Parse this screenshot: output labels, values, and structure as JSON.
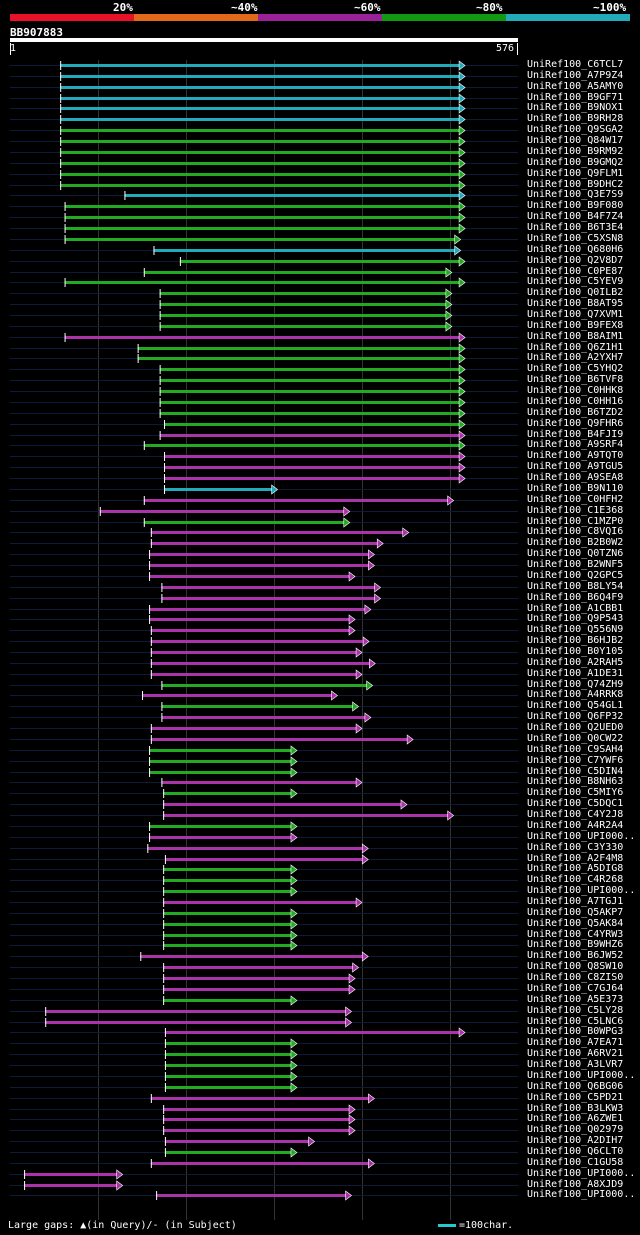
{
  "legend": {
    "labels": [
      "20%",
      "~40%",
      "~60%",
      "~80%",
      "~100%"
    ],
    "colors": [
      "#e8112a",
      "#e06a1a",
      "#992299",
      "#119911",
      "#22aabb"
    ]
  },
  "query": {
    "id": "BB907883",
    "start": "1",
    "end": "576",
    "length": 576
  },
  "colors": {
    "cyan": "#22aabb",
    "green": "#22aa22",
    "magenta": "#aa33aa"
  },
  "hits": [
    {
      "id": "UniRef100_C6TCL7",
      "c": "cyan",
      "s": 57,
      "e": 517
    },
    {
      "id": "UniRef100_A7P9Z4",
      "c": "cyan",
      "s": 57,
      "e": 517
    },
    {
      "id": "UniRef100_A5AMY0",
      "c": "cyan",
      "s": 57,
      "e": 517
    },
    {
      "id": "UniRef100_B9GF71",
      "c": "cyan",
      "s": 57,
      "e": 517
    },
    {
      "id": "UniRef100_B9NOX1",
      "c": "cyan",
      "s": 57,
      "e": 517
    },
    {
      "id": "UniRef100_B9RH28",
      "c": "cyan",
      "s": 57,
      "e": 517
    },
    {
      "id": "UniRef100_Q9SGA2",
      "c": "green",
      "s": 57,
      "e": 517
    },
    {
      "id": "UniRef100_Q84W17",
      "c": "green",
      "s": 57,
      "e": 517
    },
    {
      "id": "UniRef100_B9RM92",
      "c": "green",
      "s": 57,
      "e": 517
    },
    {
      "id": "UniRef100_B9GMQ2",
      "c": "green",
      "s": 57,
      "e": 517
    },
    {
      "id": "UniRef100_Q9FLM1",
      "c": "green",
      "s": 57,
      "e": 517
    },
    {
      "id": "UniRef100_B9DHC2",
      "c": "green",
      "s": 57,
      "e": 517
    },
    {
      "id": "UniRef100_Q3E7S9",
      "c": "cyan",
      "s": 130,
      "e": 517
    },
    {
      "id": "UniRef100_B9F080",
      "c": "green",
      "s": 62,
      "e": 517
    },
    {
      "id": "UniRef100_B4F7Z4",
      "c": "green",
      "s": 62,
      "e": 517
    },
    {
      "id": "UniRef100_B6T3E4",
      "c": "green",
      "s": 62,
      "e": 517
    },
    {
      "id": "UniRef100_C5XSN8",
      "c": "green",
      "s": 62,
      "e": 512
    },
    {
      "id": "UniRef100_Q680H6",
      "c": "cyan",
      "s": 163,
      "e": 512
    },
    {
      "id": "UniRef100_Q2V8D7",
      "c": "green",
      "s": 193,
      "e": 517
    },
    {
      "id": "UniRef100_C0PE87",
      "c": "green",
      "s": 152,
      "e": 502
    },
    {
      "id": "UniRef100_C5YEV9",
      "c": "green",
      "s": 62,
      "e": 517
    },
    {
      "id": "UniRef100_Q0ILB2",
      "c": "green",
      "s": 170,
      "e": 502
    },
    {
      "id": "UniRef100_B8AT95",
      "c": "green",
      "s": 170,
      "e": 502
    },
    {
      "id": "UniRef100_Q7XVM1",
      "c": "green",
      "s": 170,
      "e": 502
    },
    {
      "id": "UniRef100_B9FEX8",
      "c": "green",
      "s": 170,
      "e": 502
    },
    {
      "id": "UniRef100_B8AIM1",
      "c": "magenta",
      "s": 62,
      "e": 517
    },
    {
      "id": "UniRef100_Q6Z1H1",
      "c": "green",
      "s": 145,
      "e": 517
    },
    {
      "id": "UniRef100_A2YXH7",
      "c": "green",
      "s": 145,
      "e": 517
    },
    {
      "id": "UniRef100_C5YHQ2",
      "c": "green",
      "s": 170,
      "e": 517
    },
    {
      "id": "UniRef100_B6TVF8",
      "c": "green",
      "s": 170,
      "e": 517
    },
    {
      "id": "UniRef100_C0HHK8",
      "c": "green",
      "s": 170,
      "e": 517
    },
    {
      "id": "UniRef100_C0HH16",
      "c": "green",
      "s": 170,
      "e": 517
    },
    {
      "id": "UniRef100_B6TZD2",
      "c": "green",
      "s": 170,
      "e": 517
    },
    {
      "id": "UniRef100_Q9FHR6",
      "c": "green",
      "s": 175,
      "e": 517
    },
    {
      "id": "UniRef100_B4FJI9",
      "c": "magenta",
      "s": 170,
      "e": 517
    },
    {
      "id": "UniRef100_A9SRF4",
      "c": "green",
      "s": 152,
      "e": 517
    },
    {
      "id": "UniRef100_A9TQT0",
      "c": "magenta",
      "s": 175,
      "e": 517
    },
    {
      "id": "UniRef100_A9TGU5",
      "c": "magenta",
      "s": 175,
      "e": 517
    },
    {
      "id": "UniRef100_A9SEA8",
      "c": "magenta",
      "s": 175,
      "e": 517
    },
    {
      "id": "UniRef100_B9N110",
      "c": "cyan",
      "s": 175,
      "e": 304
    },
    {
      "id": "UniRef100_C0HFH2",
      "c": "magenta",
      "s": 152,
      "e": 504
    },
    {
      "id": "UniRef100_C1E368",
      "c": "magenta",
      "s": 102,
      "e": 386
    },
    {
      "id": "UniRef100_C1MZP0",
      "c": "green",
      "s": 152,
      "e": 386
    },
    {
      "id": "UniRef100_C8VQI6",
      "c": "magenta",
      "s": 160,
      "e": 453
    },
    {
      "id": "UniRef100_B2B0W2",
      "c": "magenta",
      "s": 160,
      "e": 424
    },
    {
      "id": "UniRef100_Q0TZN6",
      "c": "magenta",
      "s": 158,
      "e": 414
    },
    {
      "id": "UniRef100_B2WNF5",
      "c": "magenta",
      "s": 158,
      "e": 414
    },
    {
      "id": "UniRef100_Q2GPC5",
      "c": "magenta",
      "s": 158,
      "e": 392
    },
    {
      "id": "UniRef100_B8LY54",
      "c": "magenta",
      "s": 172,
      "e": 421
    },
    {
      "id": "UniRef100_B6Q4F9",
      "c": "magenta",
      "s": 172,
      "e": 421
    },
    {
      "id": "UniRef100_A1CBB1",
      "c": "magenta",
      "s": 158,
      "e": 410
    },
    {
      "id": "UniRef100_Q9P543",
      "c": "magenta",
      "s": 158,
      "e": 392
    },
    {
      "id": "UniRef100_Q556N9",
      "c": "magenta",
      "s": 160,
      "e": 392
    },
    {
      "id": "UniRef100_B6HJB2",
      "c": "magenta",
      "s": 160,
      "e": 408
    },
    {
      "id": "UniRef100_B0Y105",
      "c": "magenta",
      "s": 160,
      "e": 400
    },
    {
      "id": "UniRef100_A2RAH5",
      "c": "magenta",
      "s": 160,
      "e": 415
    },
    {
      "id": "UniRef100_A1DE31",
      "c": "magenta",
      "s": 160,
      "e": 400
    },
    {
      "id": "UniRef100_Q74ZH9",
      "c": "green",
      "s": 172,
      "e": 412
    },
    {
      "id": "UniRef100_A4RRK8",
      "c": "magenta",
      "s": 150,
      "e": 372
    },
    {
      "id": "UniRef100_Q54GL1",
      "c": "green",
      "s": 172,
      "e": 396
    },
    {
      "id": "UniRef100_Q6FP32",
      "c": "magenta",
      "s": 172,
      "e": 410
    },
    {
      "id": "UniRef100_Q2UED0",
      "c": "magenta",
      "s": 160,
      "e": 400
    },
    {
      "id": "UniRef100_Q0CW22",
      "c": "magenta",
      "s": 160,
      "e": 458
    },
    {
      "id": "UniRef100_C9SAH4",
      "c": "green",
      "s": 158,
      "e": 326
    },
    {
      "id": "UniRef100_C7YWF6",
      "c": "green",
      "s": 158,
      "e": 326
    },
    {
      "id": "UniRef100_C5DIN4",
      "c": "green",
      "s": 158,
      "e": 326
    },
    {
      "id": "UniRef100_B8NH63",
      "c": "magenta",
      "s": 172,
      "e": 400
    },
    {
      "id": "UniRef100_C5MIY6",
      "c": "green",
      "s": 174,
      "e": 326
    },
    {
      "id": "UniRef100_C5DQC1",
      "c": "magenta",
      "s": 174,
      "e": 451
    },
    {
      "id": "UniRef100_C4Y2J8",
      "c": "magenta",
      "s": 174,
      "e": 504
    },
    {
      "id": "UniRef100_A4R2A4",
      "c": "green",
      "s": 158,
      "e": 326
    },
    {
      "id": "UniRef100_UPI000..",
      "c": "magenta",
      "s": 158,
      "e": 326
    },
    {
      "id": "UniRef100_C3Y330",
      "c": "magenta",
      "s": 156,
      "e": 407
    },
    {
      "id": "UniRef100_A2F4M8",
      "c": "magenta",
      "s": 176,
      "e": 407
    },
    {
      "id": "UniRef100_A5DIG8",
      "c": "green",
      "s": 174,
      "e": 326
    },
    {
      "id": "UniRef100_C4R268",
      "c": "green",
      "s": 174,
      "e": 326
    },
    {
      "id": "UniRef100_UPI000..",
      "c": "green",
      "s": 174,
      "e": 326
    },
    {
      "id": "UniRef100_A7TGJ1",
      "c": "magenta",
      "s": 174,
      "e": 400
    },
    {
      "id": "UniRef100_Q5AKP7",
      "c": "green",
      "s": 174,
      "e": 326
    },
    {
      "id": "UniRef100_Q5AK84",
      "c": "green",
      "s": 174,
      "e": 326
    },
    {
      "id": "UniRef100_C4YRW3",
      "c": "green",
      "s": 174,
      "e": 326
    },
    {
      "id": "UniRef100_B9WHZ6",
      "c": "green",
      "s": 174,
      "e": 326
    },
    {
      "id": "UniRef100_B6JW52",
      "c": "magenta",
      "s": 148,
      "e": 407
    },
    {
      "id": "UniRef100_Q8SW10",
      "c": "magenta",
      "s": 174,
      "e": 396
    },
    {
      "id": "UniRef100_C8ZIS0",
      "c": "magenta",
      "s": 174,
      "e": 392
    },
    {
      "id": "UniRef100_C7GJ64",
      "c": "magenta",
      "s": 174,
      "e": 392
    },
    {
      "id": "UniRef100_A5E373",
      "c": "green",
      "s": 174,
      "e": 326
    },
    {
      "id": "UniRef100_C5LY28",
      "c": "magenta",
      "s": 40,
      "e": 388
    },
    {
      "id": "UniRef100_C5LNC6",
      "c": "magenta",
      "s": 40,
      "e": 388
    },
    {
      "id": "UniRef100_B0WPG3",
      "c": "magenta",
      "s": 176,
      "e": 517
    },
    {
      "id": "UniRef100_A7EA71",
      "c": "green",
      "s": 176,
      "e": 326
    },
    {
      "id": "UniRef100_A6RV21",
      "c": "green",
      "s": 176,
      "e": 326
    },
    {
      "id": "UniRef100_A3LVR7",
      "c": "green",
      "s": 176,
      "e": 326
    },
    {
      "id": "UniRef100_UPI000..",
      "c": "green",
      "s": 176,
      "e": 326
    },
    {
      "id": "UniRef100_Q6BG06",
      "c": "green",
      "s": 176,
      "e": 326
    },
    {
      "id": "UniRef100_C5PD21",
      "c": "magenta",
      "s": 160,
      "e": 414
    },
    {
      "id": "UniRef100_B3LKW3",
      "c": "magenta",
      "s": 174,
      "e": 392
    },
    {
      "id": "UniRef100_A6ZWE1",
      "c": "magenta",
      "s": 174,
      "e": 392
    },
    {
      "id": "UniRef100_Q02979",
      "c": "magenta",
      "s": 174,
      "e": 392
    },
    {
      "id": "UniRef100_A2DIH7",
      "c": "magenta",
      "s": 176,
      "e": 346
    },
    {
      "id": "UniRef100_Q6CLT0",
      "c": "green",
      "s": 176,
      "e": 326
    },
    {
      "id": "UniRef100_C1GU58",
      "c": "magenta",
      "s": 160,
      "e": 414
    },
    {
      "id": "UniRef100_UPI000..",
      "c": "magenta",
      "s": 16,
      "e": 128
    },
    {
      "id": "UniRef100_A8XJD9",
      "c": "magenta",
      "s": 16,
      "e": 128
    },
    {
      "id": "UniRef100_UPI000..",
      "c": "magenta",
      "s": 166,
      "e": 388
    }
  ],
  "footer": {
    "gaps": "Large gaps: ▲(in Query)/- (in Subject)",
    "scale": "=100char."
  }
}
